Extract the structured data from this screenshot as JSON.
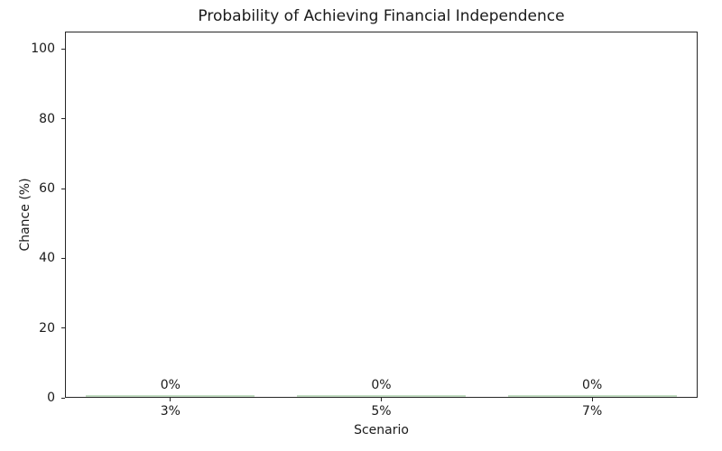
{
  "chart_data": {
    "type": "bar",
    "title": "Probability of Achieving Financial Independence",
    "xlabel": "Scenario",
    "ylabel": "Chance (%)",
    "categories": [
      "3%",
      "5%",
      "7%"
    ],
    "values": [
      0,
      0,
      0
    ],
    "bar_labels": [
      "0%",
      "0%",
      "0%"
    ],
    "yticks": [
      0,
      20,
      40,
      60,
      80,
      100
    ],
    "ylim": [
      0,
      105
    ],
    "bar_color": "#c2ddc2",
    "grid": false,
    "legend_position": "none",
    "bar_width_fraction": 0.8
  }
}
